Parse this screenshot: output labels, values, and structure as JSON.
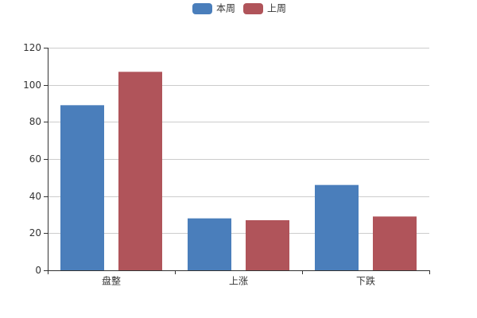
{
  "chart_data": {
    "type": "bar",
    "categories": [
      "盘整",
      "上涨",
      "下跌"
    ],
    "series": [
      {
        "name": "本周",
        "color": "#4a7ebb",
        "values": [
          89,
          28,
          46
        ]
      },
      {
        "name": "上周",
        "color": "#b0545a",
        "values": [
          107,
          27,
          29
        ]
      }
    ],
    "ylim": [
      0,
      120
    ],
    "yticks": [
      0,
      20,
      40,
      60,
      80,
      100,
      120
    ],
    "grid": true,
    "legend": "top"
  }
}
